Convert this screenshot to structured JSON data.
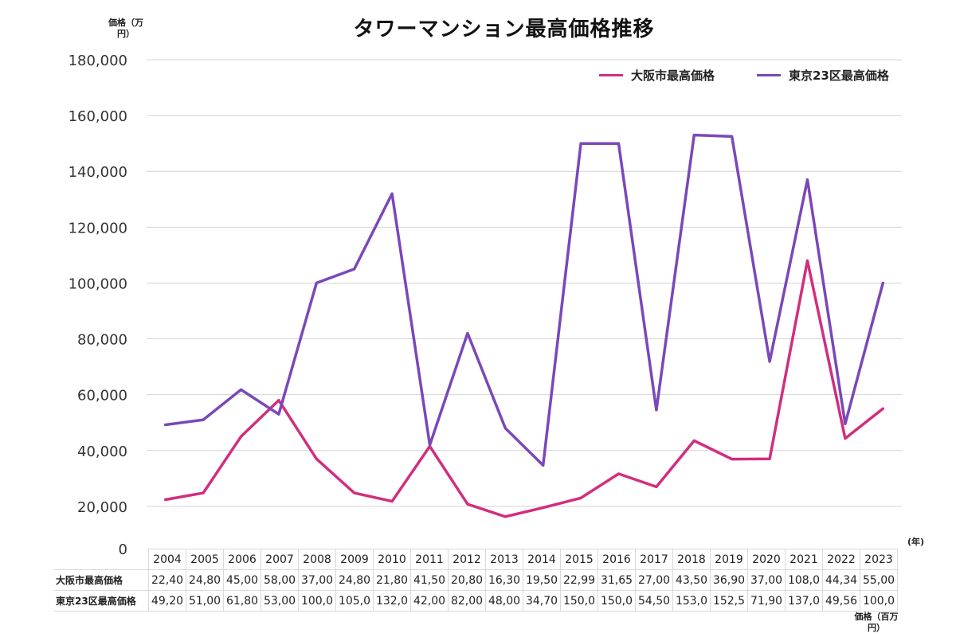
{
  "chart_data": {
    "type": "line",
    "title": "タワーマンション最高価格推移",
    "ylabel": "価格（万円）",
    "xlabel": "(年)",
    "table_unit_label": "価格（百万円）",
    "ylim": [
      0,
      180000
    ],
    "ytick_labels": [
      "180,000",
      "160,000",
      "140,000",
      "120,000",
      "100,000",
      "80,000",
      "60,000",
      "40,000",
      "20,000",
      "0"
    ],
    "yticks": [
      180000,
      160000,
      140000,
      120000,
      100000,
      80000,
      60000,
      40000,
      20000,
      0
    ],
    "categories": [
      "2004",
      "2005",
      "2006",
      "2007",
      "2008",
      "2009",
      "2010",
      "2011",
      "2012",
      "2013",
      "2014",
      "2015",
      "2016",
      "2017",
      "2018",
      "2019",
      "2020",
      "2021",
      "2022",
      "2023"
    ],
    "grid": true,
    "legend_position": "top-right",
    "series": [
      {
        "name": "大阪市最高価格",
        "color": "#d12e7e",
        "values": [
          22400,
          24800,
          45000,
          58000,
          37000,
          24800,
          21800,
          41500,
          20800,
          16300,
          19500,
          22990,
          31650,
          27000,
          43500,
          36900,
          37000,
          108000,
          44340,
          55000
        ],
        "table_labels": [
          "22,40",
          "24,80",
          "45,00",
          "58,00",
          "37,00",
          "24,80",
          "21,80",
          "41,50",
          "20,80",
          "16,30",
          "19,50",
          "22,99",
          "31,65",
          "27,00",
          "43,50",
          "36,90",
          "37,00",
          "108,0",
          "44,34",
          "55,00"
        ]
      },
      {
        "name": "東京23区最高価格",
        "color": "#7a48b8",
        "values": [
          49200,
          51000,
          61800,
          53000,
          100000,
          105000,
          132000,
          42000,
          82000,
          48000,
          34700,
          150000,
          150000,
          54500,
          153000,
          152500,
          71900,
          137000,
          49560,
          100000
        ],
        "table_labels": [
          "49,20",
          "51,00",
          "61,80",
          "53,00",
          "100,0",
          "105,0",
          "132,0",
          "42,00",
          "82,00",
          "48,00",
          "34,70",
          "150,0",
          "150,0",
          "54,50",
          "153,0",
          "152,5",
          "71,90",
          "137,0",
          "49,56",
          "100,0"
        ]
      }
    ]
  }
}
